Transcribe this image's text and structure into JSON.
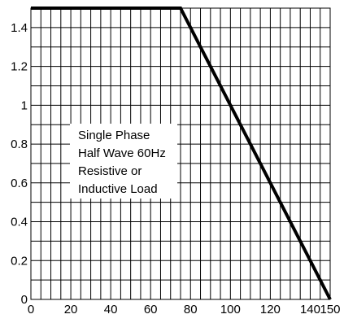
{
  "chart_data": {
    "type": "line",
    "title": "",
    "xlabel": "",
    "ylabel": "",
    "xlim": [
      0,
      150
    ],
    "ylim": [
      0,
      1.5
    ],
    "x_ticks": [
      0,
      20,
      40,
      60,
      80,
      100,
      120,
      140,
      150
    ],
    "y_ticks": [
      0,
      0.2,
      0.4,
      0.6,
      0.8,
      1,
      1.2,
      1.4
    ],
    "x_tick_labels": [
      "0",
      "20",
      "40",
      "60",
      "80",
      "100",
      "120",
      "140",
      "150"
    ],
    "y_tick_labels": [
      "0",
      "0.2",
      "0.4",
      "0.6",
      "0.8",
      "1",
      "1.2",
      "1.4"
    ],
    "x_grid_step": 5,
    "y_grid_step": 0.1,
    "grid": true,
    "series": [
      {
        "x": [
          0,
          75,
          150
        ],
        "y": [
          1.5,
          1.5,
          0
        ]
      }
    ],
    "annotation": {
      "lines": [
        "Single Phase",
        "Half Wave 60Hz",
        "Resistive or",
        "Inductive Load"
      ]
    },
    "colors": {
      "line": "#000000",
      "grid": "#000000",
      "background": "#ffffff"
    }
  }
}
